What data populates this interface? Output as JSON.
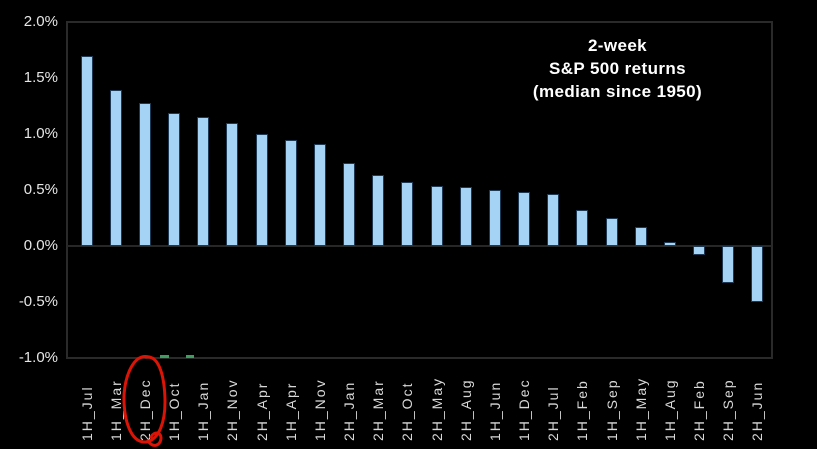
{
  "chart_data": {
    "type": "bar",
    "title": "2-week S&P 500 returns (median since 1950)",
    "title_lines": [
      "2-week",
      "S&P 500 returns",
      "(median since 1950)"
    ],
    "categories": [
      "1H_Jul",
      "1H_Mar",
      "2H_Dec",
      "1H_Oct",
      "1H_Jan",
      "2H_Nov",
      "2H_Apr",
      "1H_Apr",
      "1H_Nov",
      "2H_Jan",
      "2H_Mar",
      "2H_Oct",
      "2H_May",
      "2H_Aug",
      "1H_Jun",
      "1H_Dec",
      "2H_Jul",
      "1H_Feb",
      "1H_Sep",
      "1H_May",
      "1H_Aug",
      "2H_Feb",
      "2H_Sep",
      "2H_Jun"
    ],
    "values": [
      1.7,
      1.39,
      1.28,
      1.19,
      1.15,
      1.1,
      1.0,
      0.95,
      0.91,
      0.74,
      0.63,
      0.57,
      0.54,
      0.53,
      0.5,
      0.48,
      0.46,
      0.32,
      0.25,
      0.17,
      0.04,
      -0.08,
      -0.33,
      -0.5
    ],
    "xlabel": "",
    "ylabel": "",
    "ylim": [
      -1.0,
      2.0
    ],
    "ytick_values": [
      2.0,
      1.5,
      1.0,
      0.5,
      0.0,
      -0.5,
      -1.0
    ],
    "ytick_labels": [
      "2.0%",
      "1.5%",
      "1.0%",
      "0.5%",
      "0.0%",
      "-0.5%",
      "-1.0%"
    ],
    "grid": false,
    "legend": null,
    "colors": {
      "background": "#000000",
      "bar_fill": "#a5d3f5",
      "bar_stroke": "#1d3a55",
      "axis": "#2a2a2a",
      "tick_text": "#e6e6e6",
      "title_text": "#ffffff",
      "annotation_red": "#db1405",
      "annotation_green": "#3f9e5f"
    },
    "annotations": [
      {
        "type": "hand-drawn-red-circle",
        "target_category": "2H_Dec"
      },
      {
        "type": "green-axis-dashes",
        "positions_x": [
          160,
          186
        ],
        "widths": [
          9,
          8
        ]
      }
    ]
  }
}
